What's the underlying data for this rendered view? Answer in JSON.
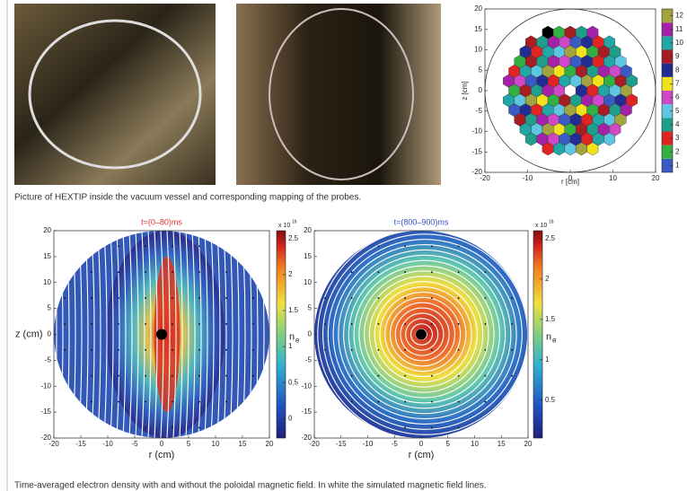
{
  "figure1": {
    "caption": "Picture of HEXTIP inside the vacuum vessel and corresponding mapping of the probes.",
    "probe_map": {
      "xlabel": "r [cm]",
      "ylabel": "z [cm]",
      "xlim": [
        -20,
        20
      ],
      "ylim": [
        -20,
        20
      ],
      "xticks": [
        -20,
        -10,
        0,
        10,
        20
      ],
      "yticks": [
        -20,
        -15,
        -10,
        -5,
        0,
        5,
        10,
        15,
        20
      ],
      "clim": [
        0.5,
        12.5
      ],
      "colorbar_ticks": [
        1,
        2,
        3,
        4,
        5,
        6,
        7,
        8,
        9,
        10,
        11,
        12
      ],
      "colorbar_colors": [
        "#3a5bc4",
        "#33b044",
        "#e02424",
        "#1f9e8c",
        "#5ec6e0",
        "#d048c8",
        "#f2e21e",
        "#232c92",
        "#a81c24",
        "#22a6a6",
        "#a422a8",
        "#a4a43e"
      ]
    }
  },
  "figure2": {
    "caption": "Time-averaged electron density with and without the poloidal magnetic field. In white the simulated magnetic field lines.",
    "xlabel": "r (cm)",
    "ylabel": "z (cm)",
    "colorbar_label": "n",
    "colorbar_label_sub": "e",
    "multiplier": "x 10",
    "multiplier_exp": "16",
    "xlim": [
      -20,
      20
    ],
    "ylim": [
      -20,
      20
    ],
    "xticks": [
      -20,
      -15,
      -10,
      -5,
      0,
      5,
      10,
      15,
      20
    ],
    "yticks": [
      -20,
      -15,
      -10,
      -5,
      0,
      5,
      10,
      15,
      20
    ],
    "panels": [
      {
        "title": "t=(0–80)ms",
        "title_color": "#e0302a",
        "clim": [
          -0.27,
          2.61
        ],
        "colorbar_ticks": [
          0,
          0.5,
          1,
          1.5,
          2,
          2.5
        ]
      },
      {
        "title": "t=(800–900)ms",
        "title_color": "#3050c0",
        "clim": [
          0.03,
          2.6
        ],
        "colorbar_ticks": [
          0.5,
          1,
          1.5,
          2,
          2.5
        ]
      }
    ]
  }
}
